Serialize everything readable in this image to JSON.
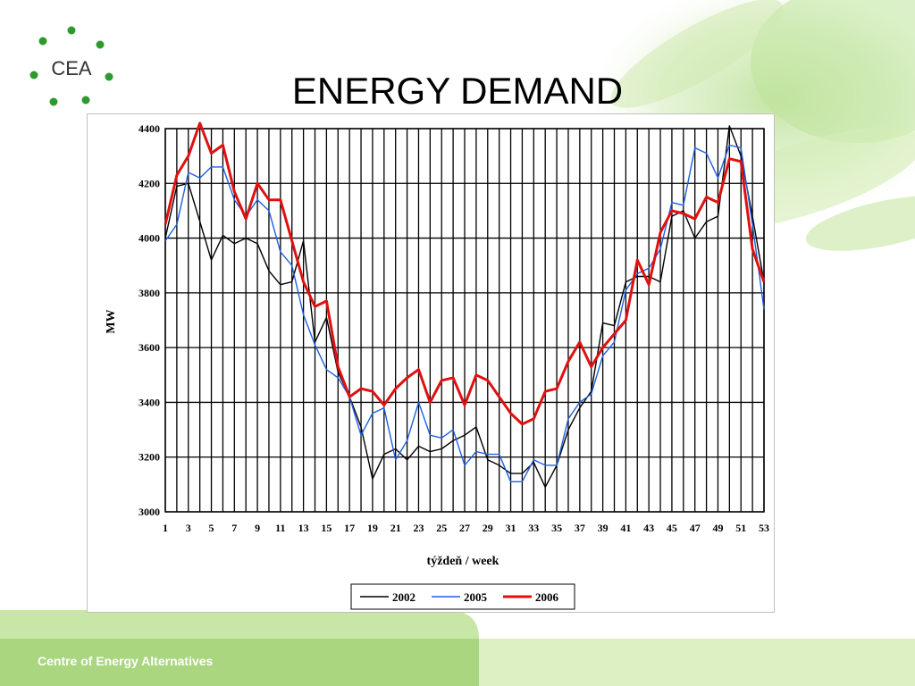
{
  "slide": {
    "title": "ENERGY DEMAND",
    "logo_text": "CEA",
    "footer": "Centre of Energy Alternatives"
  },
  "colors": {
    "footer_green": "#bfe19a",
    "footer_green_light": "#d9efbf",
    "logo_green": "#2e9a2e",
    "series_2002": "#000000",
    "series_2005": "#1f5fe0",
    "series_2006": "#e01010"
  },
  "chart_data": {
    "type": "line",
    "title": "",
    "xlabel": "týždeň / week",
    "ylabel": "MW",
    "ylim": [
      3000,
      4400
    ],
    "yticks": [
      3000,
      3200,
      3400,
      3600,
      3800,
      4000,
      4200,
      4400
    ],
    "xlim": [
      1,
      53
    ],
    "xtick_labels": [
      "1",
      "3",
      "5",
      "7",
      "9",
      "11",
      "13",
      "15",
      "17",
      "19",
      "21",
      "23",
      "25",
      "27",
      "29",
      "31",
      "33",
      "35",
      "37",
      "39",
      "41",
      "43",
      "45",
      "47",
      "49",
      "51",
      "53"
    ],
    "grid": true,
    "legend_position": "bottom-center",
    "x": [
      1,
      2,
      3,
      4,
      5,
      6,
      7,
      8,
      9,
      10,
      11,
      12,
      13,
      14,
      15,
      16,
      17,
      18,
      19,
      20,
      21,
      22,
      23,
      24,
      25,
      26,
      27,
      28,
      29,
      30,
      31,
      32,
      33,
      34,
      35,
      36,
      37,
      38,
      39,
      40,
      41,
      42,
      43,
      44,
      45,
      46,
      47,
      48,
      49,
      50,
      51,
      52,
      53
    ],
    "series": [
      {
        "name": "2002",
        "values": [
          4000,
          4190,
          4200,
          4060,
          3920,
          4010,
          3980,
          4000,
          3980,
          3880,
          3830,
          3840,
          3990,
          3620,
          3710,
          3510,
          3420,
          3310,
          3120,
          3210,
          3230,
          3190,
          3240,
          3220,
          3230,
          3260,
          3280,
          3310,
          3190,
          3170,
          3140,
          3140,
          3180,
          3090,
          3170,
          3300,
          3380,
          3440,
          3690,
          3680,
          3840,
          3860,
          3860,
          3840,
          4080,
          4100,
          4000,
          4060,
          4080,
          4410,
          4300,
          4080,
          3840
        ]
      },
      {
        "name": "2005",
        "values": [
          3990,
          4050,
          4240,
          4220,
          4260,
          4260,
          4140,
          4080,
          4140,
          4100,
          3950,
          3900,
          3720,
          3610,
          3520,
          3490,
          3420,
          3280,
          3360,
          3380,
          3190,
          3260,
          3400,
          3280,
          3270,
          3300,
          3170,
          3220,
          3210,
          3210,
          3110,
          3110,
          3190,
          3170,
          3170,
          3340,
          3400,
          3430,
          3570,
          3620,
          3810,
          3870,
          3890,
          3960,
          4130,
          4120,
          4330,
          4310,
          4220,
          4340,
          4330,
          4050,
          3740
        ]
      },
      {
        "name": "2006",
        "values": [
          4050,
          4230,
          4300,
          4420,
          4310,
          4340,
          4170,
          4070,
          4200,
          4140,
          4140,
          3990,
          3840,
          3750,
          3770,
          3530,
          3420,
          3450,
          3440,
          3390,
          3450,
          3490,
          3520,
          3400,
          3480,
          3490,
          3390,
          3500,
          3480,
          3420,
          3360,
          3320,
          3340,
          3440,
          3450,
          3550,
          3620,
          3530,
          3600,
          3650,
          3700,
          3920,
          3830,
          4020,
          4100,
          4090,
          4070,
          4150,
          4130,
          4290,
          4280,
          3960,
          3840
        ]
      }
    ]
  }
}
